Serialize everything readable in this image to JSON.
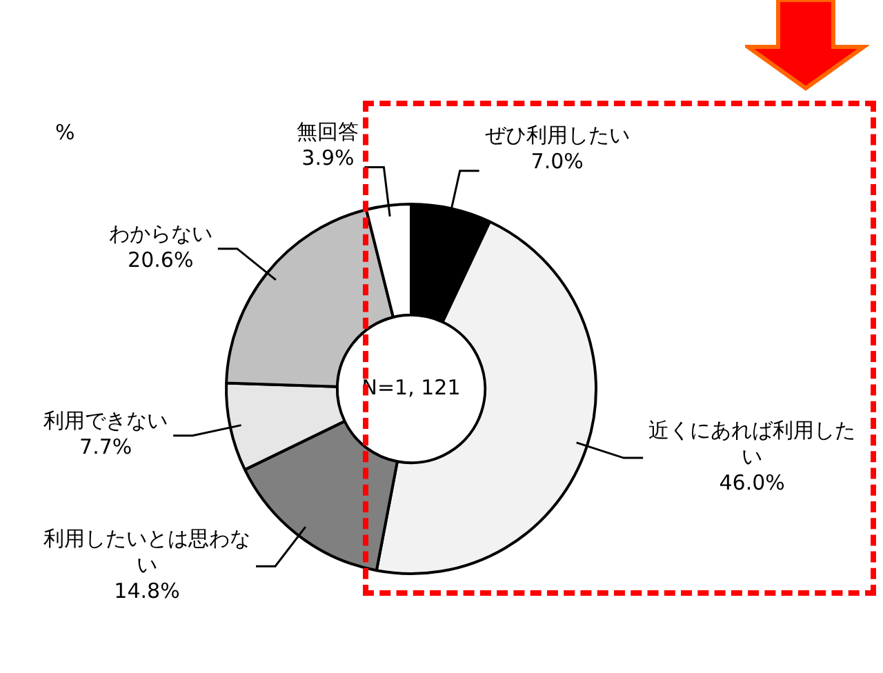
{
  "chart_data": {
    "type": "donut",
    "categories": [
      "ぜひ利用したい",
      "近くにあれば利用したい",
      "利用したいとは思わない",
      "利用できない",
      "わからない",
      "無回答"
    ],
    "values": [
      7.0,
      46.0,
      14.8,
      7.7,
      20.6,
      3.9
    ],
    "value_labels": [
      "7.0%",
      "46.0%",
      "14.8%",
      "7.7%",
      "20.6%",
      "3.9%"
    ],
    "colors": [
      "#000000",
      "#f2f2f2",
      "#808080",
      "#e6e6e6",
      "#c0c0c0",
      "#ffffff"
    ],
    "annotations": [
      "%",
      "N=1, 121"
    ],
    "legend": false
  }
}
